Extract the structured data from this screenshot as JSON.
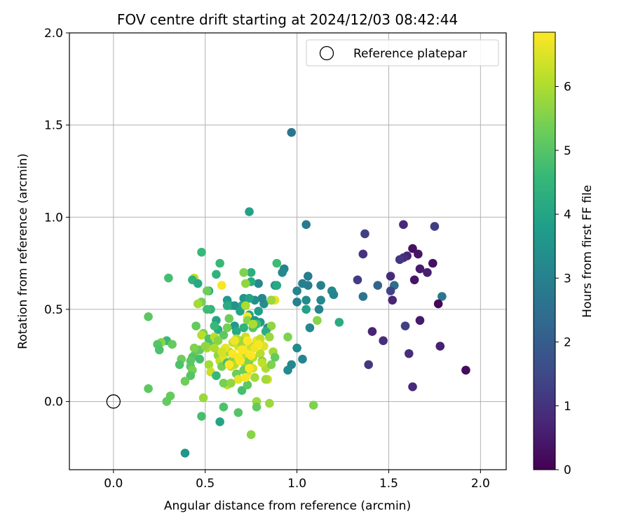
{
  "chart_data": {
    "type": "scatter",
    "title": "FOV centre drift starting at 2024/12/03 08:42:44",
    "xlabel": "Angular distance from reference (arcmin)",
    "ylabel": "Rotation from reference (arcmin)",
    "xlim": [
      -0.24,
      2.14
    ],
    "ylim": [
      -0.37,
      2.0
    ],
    "xticks": [
      0.0,
      0.5,
      1.0,
      1.5,
      2.0
    ],
    "xtick_labels": [
      "0.0",
      "0.5",
      "1.0",
      "1.5",
      "2.0"
    ],
    "yticks": [
      0.0,
      0.5,
      1.0,
      1.5,
      2.0
    ],
    "ytick_labels": [
      "0.0",
      "0.5",
      "1.0",
      "1.5",
      "2.0"
    ],
    "grid": true,
    "legend": {
      "position": "top-right",
      "entries": [
        "Reference platepar"
      ]
    },
    "reference_point": {
      "x": 0.0,
      "y": 0.0,
      "label": "Reference platepar"
    },
    "colorbar": {
      "label": "Hours from first FF file",
      "range": [
        0,
        6.85
      ],
      "ticks": [
        0,
        1,
        2,
        3,
        4,
        5,
        6
      ],
      "tick_labels": [
        "0",
        "1",
        "2",
        "3",
        "4",
        "5",
        "6"
      ],
      "colormap": "viridis"
    },
    "points": [
      {
        "x": 1.63,
        "y": 0.83,
        "h": 0.3
      },
      {
        "x": 1.6,
        "y": 0.79,
        "h": 0.7
      },
      {
        "x": 1.66,
        "y": 0.8,
        "h": 0.4
      },
      {
        "x": 1.58,
        "y": 0.96,
        "h": 0.8
      },
      {
        "x": 1.75,
        "y": 0.95,
        "h": 1.2
      },
      {
        "x": 1.37,
        "y": 0.91,
        "h": 1.3
      },
      {
        "x": 1.36,
        "y": 0.8,
        "h": 1.0
      },
      {
        "x": 1.58,
        "y": 0.78,
        "h": 0.9
      },
      {
        "x": 1.56,
        "y": 0.77,
        "h": 1.1
      },
      {
        "x": 1.67,
        "y": 0.72,
        "h": 0.5
      },
      {
        "x": 1.74,
        "y": 0.75,
        "h": 0.3
      },
      {
        "x": 1.71,
        "y": 0.7,
        "h": 0.6
      },
      {
        "x": 1.51,
        "y": 0.68,
        "h": 0.8
      },
      {
        "x": 1.64,
        "y": 0.66,
        "h": 0.4
      },
      {
        "x": 1.33,
        "y": 0.66,
        "h": 1.2
      },
      {
        "x": 1.53,
        "y": 0.63,
        "h": 2.5
      },
      {
        "x": 1.51,
        "y": 0.6,
        "h": 1.4
      },
      {
        "x": 1.52,
        "y": 0.55,
        "h": 0.7
      },
      {
        "x": 1.44,
        "y": 0.63,
        "h": 2.2
      },
      {
        "x": 1.36,
        "y": 0.57,
        "h": 2.6
      },
      {
        "x": 1.79,
        "y": 0.57,
        "h": 2.7
      },
      {
        "x": 1.77,
        "y": 0.53,
        "h": 0.1
      },
      {
        "x": 1.67,
        "y": 0.44,
        "h": 0.5
      },
      {
        "x": 1.59,
        "y": 0.41,
        "h": 1.3
      },
      {
        "x": 1.41,
        "y": 0.38,
        "h": 0.7
      },
      {
        "x": 1.47,
        "y": 0.33,
        "h": 0.9
      },
      {
        "x": 1.78,
        "y": 0.3,
        "h": 0.6
      },
      {
        "x": 1.61,
        "y": 0.26,
        "h": 0.9
      },
      {
        "x": 1.39,
        "y": 0.2,
        "h": 1.1
      },
      {
        "x": 1.92,
        "y": 0.17,
        "h": 0.2
      },
      {
        "x": 1.63,
        "y": 0.08,
        "h": 0.8
      },
      {
        "x": 0.97,
        "y": 1.46,
        "h": 2.7
      },
      {
        "x": 1.05,
        "y": 0.96,
        "h": 2.8
      },
      {
        "x": 0.74,
        "y": 1.03,
        "h": 3.9
      },
      {
        "x": 1.06,
        "y": 0.68,
        "h": 2.9
      },
      {
        "x": 0.93,
        "y": 0.72,
        "h": 3.1
      },
      {
        "x": 1.03,
        "y": 0.64,
        "h": 3.0
      },
      {
        "x": 1.06,
        "y": 0.63,
        "h": 2.9
      },
      {
        "x": 1.13,
        "y": 0.63,
        "h": 3.0
      },
      {
        "x": 1.0,
        "y": 0.6,
        "h": 3.1
      },
      {
        "x": 1.19,
        "y": 0.6,
        "h": 3.2
      },
      {
        "x": 1.2,
        "y": 0.58,
        "h": 3.1
      },
      {
        "x": 1.13,
        "y": 0.55,
        "h": 3.2
      },
      {
        "x": 1.0,
        "y": 0.54,
        "h": 3.0
      },
      {
        "x": 1.05,
        "y": 0.55,
        "h": 3.3
      },
      {
        "x": 1.05,
        "y": 0.5,
        "h": 3.9
      },
      {
        "x": 1.12,
        "y": 0.5,
        "h": 3.1
      },
      {
        "x": 1.23,
        "y": 0.43,
        "h": 4.2
      },
      {
        "x": 1.07,
        "y": 0.4,
        "h": 3.2
      },
      {
        "x": 1.0,
        "y": 0.29,
        "h": 3.3
      },
      {
        "x": 1.03,
        "y": 0.23,
        "h": 3.1
      },
      {
        "x": 0.95,
        "y": 0.17,
        "h": 3.3
      },
      {
        "x": 0.97,
        "y": 0.2,
        "h": 3.2
      },
      {
        "x": 1.11,
        "y": 0.44,
        "h": 5.6
      },
      {
        "x": 1.09,
        "y": -0.02,
        "h": 5.5
      },
      {
        "x": 0.95,
        "y": 0.35,
        "h": 5.5
      },
      {
        "x": 0.92,
        "y": 0.7,
        "h": 3.2
      },
      {
        "x": 0.89,
        "y": 0.75,
        "h": 4.7
      },
      {
        "x": 0.79,
        "y": 0.64,
        "h": 3.2
      },
      {
        "x": 0.75,
        "y": 0.65,
        "h": 4.2
      },
      {
        "x": 0.75,
        "y": 0.7,
        "h": 4.3
      },
      {
        "x": 0.71,
        "y": 0.7,
        "h": 5.5
      },
      {
        "x": 0.72,
        "y": 0.64,
        "h": 5.7
      },
      {
        "x": 0.88,
        "y": 0.63,
        "h": 3.5
      },
      {
        "x": 0.89,
        "y": 0.63,
        "h": 4.1
      },
      {
        "x": 0.86,
        "y": 0.55,
        "h": 3.3
      },
      {
        "x": 0.82,
        "y": 0.53,
        "h": 3.4
      },
      {
        "x": 0.88,
        "y": 0.55,
        "h": 6.6
      },
      {
        "x": 0.86,
        "y": 0.55,
        "h": 5.8
      },
      {
        "x": 0.81,
        "y": 0.56,
        "h": 3.2
      },
      {
        "x": 0.77,
        "y": 0.55,
        "h": 3.4
      },
      {
        "x": 0.71,
        "y": 0.56,
        "h": 3.6
      },
      {
        "x": 0.74,
        "y": 0.56,
        "h": 4.0
      },
      {
        "x": 0.7,
        "y": 0.52,
        "h": 4.1
      },
      {
        "x": 0.64,
        "y": 0.52,
        "h": 4.6
      },
      {
        "x": 0.62,
        "y": 0.55,
        "h": 3.7
      },
      {
        "x": 0.66,
        "y": 0.52,
        "h": 3.5
      },
      {
        "x": 0.62,
        "y": 0.52,
        "h": 4.2
      },
      {
        "x": 0.74,
        "y": 0.47,
        "h": 3.9
      },
      {
        "x": 0.69,
        "y": 0.49,
        "h": 4.0
      },
      {
        "x": 0.72,
        "y": 0.52,
        "h": 6.0
      },
      {
        "x": 0.73,
        "y": 0.46,
        "h": 6.8
      },
      {
        "x": 0.73,
        "y": 0.44,
        "h": 5.6
      },
      {
        "x": 0.77,
        "y": 0.44,
        "h": 3.6
      },
      {
        "x": 0.79,
        "y": 0.49,
        "h": 3.8
      },
      {
        "x": 0.8,
        "y": 0.43,
        "h": 3.7
      },
      {
        "x": 0.84,
        "y": 0.4,
        "h": 3.5
      },
      {
        "x": 0.86,
        "y": 0.41,
        "h": 5.7
      },
      {
        "x": 0.83,
        "y": 0.38,
        "h": 4.3
      },
      {
        "x": 0.76,
        "y": 0.4,
        "h": 5.0
      },
      {
        "x": 0.78,
        "y": 0.42,
        "h": 4.8
      },
      {
        "x": 0.71,
        "y": 0.4,
        "h": 4.4
      },
      {
        "x": 0.66,
        "y": 0.41,
        "h": 3.7
      },
      {
        "x": 0.67,
        "y": 0.38,
        "h": 4.1
      },
      {
        "x": 0.62,
        "y": 0.4,
        "h": 5.4
      },
      {
        "x": 0.57,
        "y": 0.39,
        "h": 4.2
      },
      {
        "x": 0.56,
        "y": 0.44,
        "h": 4.0
      },
      {
        "x": 0.55,
        "y": 0.41,
        "h": 4.6
      },
      {
        "x": 0.6,
        "y": 0.36,
        "h": 5.1
      },
      {
        "x": 0.63,
        "y": 0.45,
        "h": 5.3
      },
      {
        "x": 0.58,
        "y": 0.75,
        "h": 4.6
      },
      {
        "x": 0.48,
        "y": 0.81,
        "h": 4.6
      },
      {
        "x": 0.56,
        "y": 0.69,
        "h": 4.4
      },
      {
        "x": 0.44,
        "y": 0.67,
        "h": 6.2
      },
      {
        "x": 0.43,
        "y": 0.66,
        "h": 4.4
      },
      {
        "x": 0.46,
        "y": 0.64,
        "h": 4.1
      },
      {
        "x": 0.3,
        "y": 0.67,
        "h": 4.8
      },
      {
        "x": 0.52,
        "y": 0.6,
        "h": 4.3
      },
      {
        "x": 0.51,
        "y": 0.6,
        "h": 5.3
      },
      {
        "x": 0.59,
        "y": 0.63,
        "h": 6.8
      },
      {
        "x": 0.48,
        "y": 0.54,
        "h": 5.4
      },
      {
        "x": 0.46,
        "y": 0.53,
        "h": 5.9
      },
      {
        "x": 0.53,
        "y": 0.5,
        "h": 4.5
      },
      {
        "x": 0.51,
        "y": 0.5,
        "h": 4.7
      },
      {
        "x": 0.19,
        "y": 0.46,
        "h": 5.1
      },
      {
        "x": 0.45,
        "y": 0.41,
        "h": 5.2
      },
      {
        "x": 0.49,
        "y": 0.37,
        "h": 5.5
      },
      {
        "x": 0.48,
        "y": 0.36,
        "h": 6.1
      },
      {
        "x": 0.52,
        "y": 0.34,
        "h": 4.9
      },
      {
        "x": 0.55,
        "y": 0.35,
        "h": 6.1
      },
      {
        "x": 0.54,
        "y": 0.3,
        "h": 5.1
      },
      {
        "x": 0.47,
        "y": 0.28,
        "h": 5.2
      },
      {
        "x": 0.44,
        "y": 0.29,
        "h": 5.5
      },
      {
        "x": 0.51,
        "y": 0.29,
        "h": 6.0
      },
      {
        "x": 0.5,
        "y": 0.3,
        "h": 5.7
      },
      {
        "x": 0.44,
        "y": 0.25,
        "h": 5.3
      },
      {
        "x": 0.43,
        "y": 0.24,
        "h": 5.0
      },
      {
        "x": 0.47,
        "y": 0.23,
        "h": 4.8
      },
      {
        "x": 0.29,
        "y": 0.33,
        "h": 4.6
      },
      {
        "x": 0.26,
        "y": 0.32,
        "h": 5.6
      },
      {
        "x": 0.24,
        "y": 0.31,
        "h": 5.0
      },
      {
        "x": 0.32,
        "y": 0.31,
        "h": 5.2
      },
      {
        "x": 0.25,
        "y": 0.28,
        "h": 4.9
      },
      {
        "x": 0.37,
        "y": 0.23,
        "h": 5.3
      },
      {
        "x": 0.42,
        "y": 0.22,
        "h": 5.1
      },
      {
        "x": 0.36,
        "y": 0.2,
        "h": 4.9
      },
      {
        "x": 0.42,
        "y": 0.19,
        "h": 5.1
      },
      {
        "x": 0.43,
        "y": 0.17,
        "h": 5.4
      },
      {
        "x": 0.42,
        "y": 0.14,
        "h": 5.0
      },
      {
        "x": 0.39,
        "y": 0.11,
        "h": 5.3
      },
      {
        "x": 0.19,
        "y": 0.07,
        "h": 5.1
      },
      {
        "x": 0.31,
        "y": 0.03,
        "h": 5.2
      },
      {
        "x": 0.29,
        "y": 0.0,
        "h": 5.2
      },
      {
        "x": 0.49,
        "y": 0.02,
        "h": 5.8
      },
      {
        "x": 0.48,
        "y": -0.08,
        "h": 4.8
      },
      {
        "x": 0.6,
        "y": -0.03,
        "h": 4.9
      },
      {
        "x": 0.58,
        "y": -0.11,
        "h": 4.0
      },
      {
        "x": 0.39,
        "y": -0.28,
        "h": 3.6
      },
      {
        "x": 0.68,
        "y": -0.06,
        "h": 5.0
      },
      {
        "x": 0.75,
        "y": -0.18,
        "h": 5.6
      },
      {
        "x": 0.78,
        "y": 0.0,
        "h": 5.8
      },
      {
        "x": 0.78,
        "y": -0.03,
        "h": 5.2
      },
      {
        "x": 0.85,
        "y": -0.01,
        "h": 5.8
      },
      {
        "x": 0.52,
        "y": 0.2,
        "h": 5.9
      },
      {
        "x": 0.53,
        "y": 0.16,
        "h": 6.3
      },
      {
        "x": 0.57,
        "y": 0.25,
        "h": 5.7
      },
      {
        "x": 0.58,
        "y": 0.22,
        "h": 6.2
      },
      {
        "x": 0.59,
        "y": 0.19,
        "h": 5.4
      },
      {
        "x": 0.6,
        "y": 0.24,
        "h": 6.5
      },
      {
        "x": 0.62,
        "y": 0.21,
        "h": 4.8
      },
      {
        "x": 0.63,
        "y": 0.27,
        "h": 5.9
      },
      {
        "x": 0.64,
        "y": 0.19,
        "h": 6.3
      },
      {
        "x": 0.65,
        "y": 0.23,
        "h": 5.6
      },
      {
        "x": 0.66,
        "y": 0.2,
        "h": 6.1
      },
      {
        "x": 0.67,
        "y": 0.15,
        "h": 5.3
      },
      {
        "x": 0.68,
        "y": 0.12,
        "h": 6.6
      },
      {
        "x": 0.68,
        "y": 0.3,
        "h": 6.4
      },
      {
        "x": 0.7,
        "y": 0.31,
        "h": 6.0
      },
      {
        "x": 0.71,
        "y": 0.28,
        "h": 6.7
      },
      {
        "x": 0.72,
        "y": 0.25,
        "h": 6.2
      },
      {
        "x": 0.72,
        "y": 0.2,
        "h": 5.8
      },
      {
        "x": 0.73,
        "y": 0.16,
        "h": 6.5
      },
      {
        "x": 0.74,
        "y": 0.22,
        "h": 5.5
      },
      {
        "x": 0.74,
        "y": 0.26,
        "h": 6.8
      },
      {
        "x": 0.75,
        "y": 0.3,
        "h": 6.3
      },
      {
        "x": 0.76,
        "y": 0.24,
        "h": 6.0
      },
      {
        "x": 0.76,
        "y": 0.18,
        "h": 6.4
      },
      {
        "x": 0.77,
        "y": 0.13,
        "h": 5.9
      },
      {
        "x": 0.78,
        "y": 0.33,
        "h": 6.6
      },
      {
        "x": 0.79,
        "y": 0.31,
        "h": 5.7
      },
      {
        "x": 0.8,
        "y": 0.26,
        "h": 6.1
      },
      {
        "x": 0.81,
        "y": 0.22,
        "h": 5.6
      },
      {
        "x": 0.82,
        "y": 0.3,
        "h": 6.5
      },
      {
        "x": 0.83,
        "y": 0.18,
        "h": 6.0
      },
      {
        "x": 0.84,
        "y": 0.12,
        "h": 6.4
      },
      {
        "x": 0.85,
        "y": 0.35,
        "h": 5.8
      },
      {
        "x": 0.86,
        "y": 0.2,
        "h": 5.5
      },
      {
        "x": 0.87,
        "y": 0.27,
        "h": 5.9
      },
      {
        "x": 0.88,
        "y": 0.24,
        "h": 5.2
      },
      {
        "x": 0.83,
        "y": 0.12,
        "h": 5.9
      },
      {
        "x": 0.8,
        "y": 0.34,
        "h": 6.2
      },
      {
        "x": 0.76,
        "y": 0.42,
        "h": 6.0
      },
      {
        "x": 0.72,
        "y": 0.35,
        "h": 6.3
      },
      {
        "x": 0.69,
        "y": 0.33,
        "h": 5.8
      },
      {
        "x": 0.67,
        "y": 0.34,
        "h": 6.1
      },
      {
        "x": 0.65,
        "y": 0.32,
        "h": 6.2
      },
      {
        "x": 0.61,
        "y": 0.29,
        "h": 6.6
      },
      {
        "x": 0.59,
        "y": 0.27,
        "h": 6.4
      },
      {
        "x": 0.57,
        "y": 0.33,
        "h": 5.6
      },
      {
        "x": 0.55,
        "y": 0.29,
        "h": 6.0
      },
      {
        "x": 0.62,
        "y": 0.09,
        "h": 6.2
      },
      {
        "x": 0.6,
        "y": 0.1,
        "h": 5.4
      },
      {
        "x": 0.64,
        "y": 0.1,
        "h": 5.7
      },
      {
        "x": 0.56,
        "y": 0.14,
        "h": 4.6
      },
      {
        "x": 0.7,
        "y": 0.06,
        "h": 4.8
      },
      {
        "x": 0.73,
        "y": 0.09,
        "h": 5.1
      },
      {
        "x": 0.71,
        "y": 0.17,
        "h": 5.3
      },
      {
        "x": 0.69,
        "y": 0.22,
        "h": 6.9
      },
      {
        "x": 0.73,
        "y": 0.33,
        "h": 6.9
      },
      {
        "x": 0.75,
        "y": 0.25,
        "h": 6.9
      },
      {
        "x": 0.63,
        "y": 0.2,
        "h": 6.9
      },
      {
        "x": 0.65,
        "y": 0.26,
        "h": 6.9
      },
      {
        "x": 0.68,
        "y": 0.24,
        "h": 6.8
      },
      {
        "x": 0.66,
        "y": 0.33,
        "h": 6.7
      },
      {
        "x": 0.72,
        "y": 0.13,
        "h": 6.8
      },
      {
        "x": 0.77,
        "y": 0.29,
        "h": 6.7
      },
      {
        "x": 0.7,
        "y": 0.28,
        "h": 6.9
      },
      {
        "x": 0.74,
        "y": 0.18,
        "h": 6.9
      },
      {
        "x": 0.79,
        "y": 0.31,
        "h": 6.8
      },
      {
        "x": 0.81,
        "y": 0.21,
        "h": 6.2
      }
    ]
  }
}
